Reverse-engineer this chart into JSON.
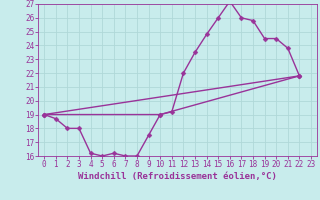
{
  "xlabel": "Windchill (Refroidissement éolien,°C)",
  "bg_color": "#c8ecec",
  "grid_color": "#b0d8d8",
  "line_color": "#993399",
  "xlim": [
    -0.5,
    23.5
  ],
  "ylim": [
    16,
    27
  ],
  "yticks": [
    16,
    17,
    18,
    19,
    20,
    21,
    22,
    23,
    24,
    25,
    26,
    27
  ],
  "xticks": [
    0,
    1,
    2,
    3,
    4,
    5,
    6,
    7,
    8,
    9,
    10,
    11,
    12,
    13,
    14,
    15,
    16,
    17,
    18,
    19,
    20,
    21,
    22,
    23
  ],
  "line1_x": [
    0,
    1,
    2,
    3,
    4,
    5,
    6,
    7,
    8,
    9,
    10,
    11,
    12,
    13,
    14,
    15,
    16,
    17,
    18,
    19,
    20,
    21,
    22
  ],
  "line1_y": [
    19.0,
    18.7,
    18.0,
    18.0,
    16.2,
    16.0,
    16.2,
    16.0,
    16.0,
    17.5,
    19.0,
    19.2,
    22.0,
    23.5,
    24.8,
    26.0,
    27.2,
    26.0,
    25.8,
    24.5,
    24.5,
    23.8,
    21.8
  ],
  "line2_x": [
    0,
    22
  ],
  "line2_y": [
    19.0,
    21.8
  ],
  "line3_x": [
    0,
    10,
    22
  ],
  "line3_y": [
    19.0,
    19.0,
    21.8
  ],
  "marker": "D",
  "marker_size": 2.5,
  "line_width": 1.0,
  "tick_fontsize": 5.5,
  "xlabel_fontsize": 6.5
}
